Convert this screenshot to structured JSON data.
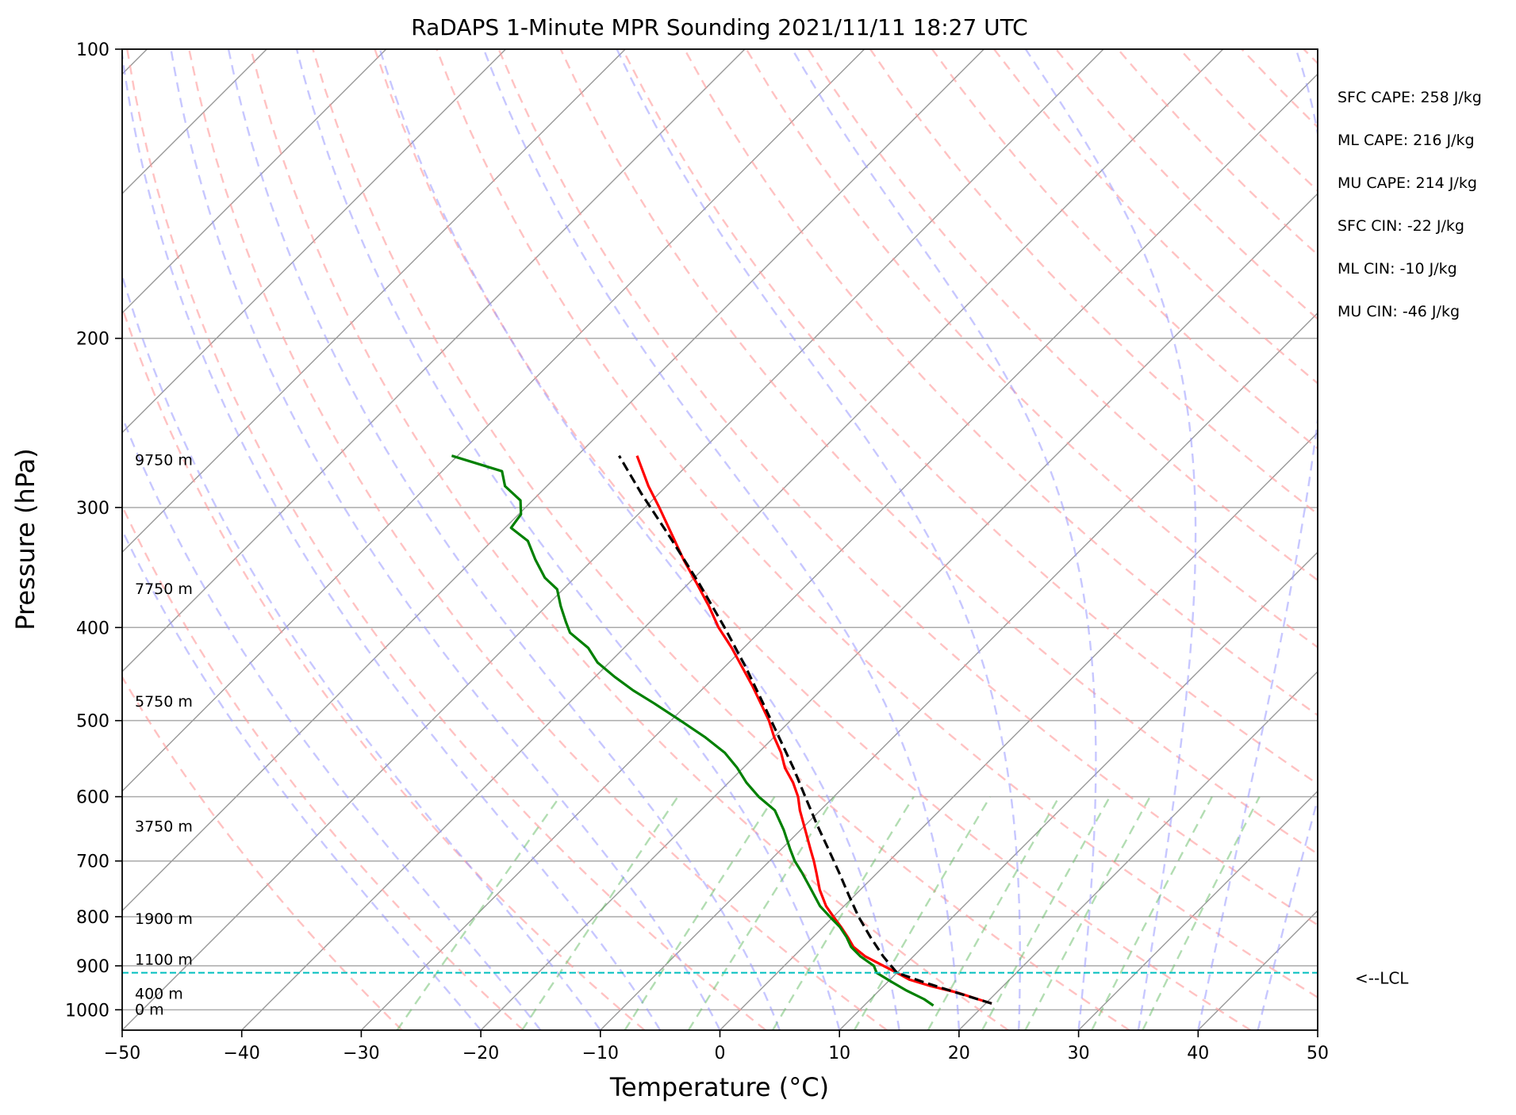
{
  "chart_data": {
    "type": "line",
    "title": "RaDAPS 1-Minute MPR Sounding 2021/11/11 18:27 UTC",
    "xlabel": "Temperature (°C)",
    "ylabel": "Pressure (hPa)",
    "xlim": [
      -50,
      50
    ],
    "ylim": [
      1050,
      100
    ],
    "y_scale": "log",
    "skew_t": true,
    "grid": true,
    "xticks": [
      "−50",
      "−40",
      "−30",
      "−20",
      "−10",
      "0",
      "10",
      "20",
      "30",
      "40",
      "50"
    ],
    "xtick_values": [
      -50,
      -40,
      -30,
      -20,
      -10,
      0,
      10,
      20,
      30,
      40,
      50
    ],
    "yticks": [
      "100",
      "200",
      "300",
      "400",
      "500",
      "600",
      "700",
      "800",
      "900",
      "1000"
    ],
    "ytick_values": [
      100,
      200,
      300,
      400,
      500,
      600,
      700,
      800,
      900,
      1000
    ],
    "series": [
      {
        "role": "temperature",
        "color": "#ff0000",
        "p": [
          985,
          975,
          960,
          945,
          930,
          915,
          900,
          880,
          860,
          840,
          820,
          800,
          780,
          750,
          720,
          700,
          680,
          650,
          620,
          600,
          580,
          560,
          540,
          520,
          500,
          480,
          460,
          440,
          420,
          400,
          380,
          360,
          340,
          320,
          300,
          285,
          265
        ],
        "t": [
          20.5,
          19.0,
          16.8,
          14.0,
          11.6,
          10.0,
          8.3,
          6.0,
          4.2,
          2.9,
          1.5,
          0.0,
          -1.5,
          -3.4,
          -5.1,
          -6.3,
          -7.6,
          -9.6,
          -11.7,
          -13.0,
          -14.6,
          -16.5,
          -18.1,
          -20.0,
          -21.8,
          -23.9,
          -26.1,
          -28.5,
          -31.0,
          -33.8,
          -36.4,
          -39.3,
          -42.4,
          -45.5,
          -48.8,
          -51.5,
          -55.0
        ]
      },
      {
        "role": "dewpoint",
        "color": "#008000",
        "p": [
          990,
          975,
          955,
          935,
          915,
          900,
          880,
          860,
          840,
          820,
          800,
          780,
          750,
          720,
          700,
          680,
          650,
          620,
          600,
          580,
          560,
          540,
          520,
          500,
          480,
          465,
          450,
          435,
          420,
          405,
          395,
          380,
          365,
          355,
          340,
          325,
          315,
          305,
          295,
          285,
          275,
          265
        ],
        "t": [
          15.8,
          14.5,
          12.3,
          10.3,
          8.3,
          7.5,
          5.6,
          4.0,
          2.8,
          1.4,
          -0.3,
          -2.0,
          -4.1,
          -6.3,
          -7.9,
          -9.3,
          -11.4,
          -13.8,
          -16.3,
          -18.5,
          -20.5,
          -22.8,
          -25.8,
          -29.2,
          -32.8,
          -35.7,
          -38.4,
          -41.0,
          -43.0,
          -45.8,
          -47.0,
          -48.8,
          -50.5,
          -52.5,
          -54.8,
          -57.0,
          -59.5,
          -59.8,
          -61.0,
          -63.5,
          -65.0,
          -70.5
        ]
      },
      {
        "role": "parcel",
        "color": "#000000",
        "p": [
          985,
          960,
          935,
          915,
          880,
          840,
          800,
          760,
          720,
          680,
          640,
          600,
          560,
          520,
          480,
          440,
          400,
          360,
          320,
          290,
          265
        ],
        "t": [
          20.5,
          16.7,
          12.9,
          10.0,
          7.5,
          4.8,
          2.1,
          -0.5,
          -3.2,
          -6.1,
          -9.2,
          -12.4,
          -15.8,
          -19.6,
          -23.7,
          -28.2,
          -33.3,
          -39.1,
          -45.8,
          -51.5,
          -56.5
        ]
      }
    ],
    "lcl_pressure": 915
  },
  "lcl_label": "<--LCL",
  "stats": [
    "SFC CAPE: 258 J/kg",
    "ML CAPE: 216 J/kg",
    "MU CAPE: 214 J/kg",
    "SFC CIN: -22 J/kg",
    "ML CIN: -10 J/kg",
    "MU CIN: -46 J/kg"
  ],
  "heights": [
    {
      "label": "9750 m",
      "p": 268
    },
    {
      "label": "7750 m",
      "p": 365
    },
    {
      "label": "5750 m",
      "p": 478
    },
    {
      "label": "3750 m",
      "p": 645
    },
    {
      "label": "1900 m",
      "p": 805
    },
    {
      "label": "1100 m",
      "p": 887
    },
    {
      "label": "400 m",
      "p": 963
    },
    {
      "label": "0 m",
      "p": 1000
    }
  ],
  "colors": {
    "temperature": "#ff0000",
    "dewpoint": "#008000",
    "parcel": "#000000",
    "lcl": "#00bfbf",
    "dry_adiabats": "#ff9999",
    "moist_adiabats": "#9999ff",
    "mixing_ratio": "#66bb66",
    "isotherms": "#999999",
    "isobars": "#aaaaaa"
  }
}
